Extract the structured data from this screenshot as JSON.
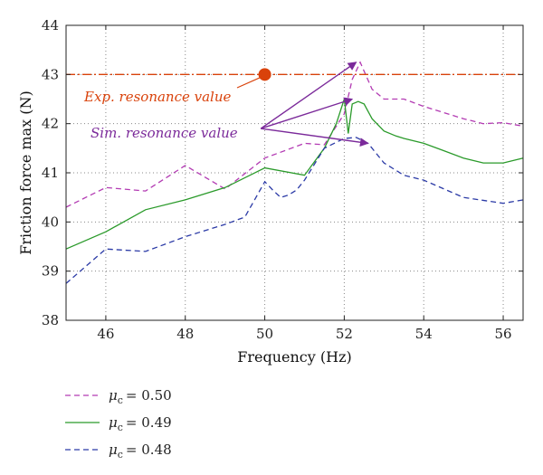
{
  "chart_data": {
    "type": "line",
    "xlabel": "Frequency (Hz)",
    "ylabel": "Friction force max (N)",
    "xlim": [
      45,
      56.5
    ],
    "ylim": [
      38,
      44
    ],
    "xticks": [
      46,
      48,
      50,
      52,
      54,
      56
    ],
    "yticks": [
      38,
      39,
      40,
      41,
      42,
      43,
      44
    ],
    "grid": "dotted",
    "legend_position": "below-left",
    "series": [
      {
        "name": "= 0.50",
        "mu_value": "0.50",
        "color": "#b33bb3",
        "dash": "dashed",
        "x": [
          45,
          46,
          47,
          48,
          49,
          50,
          51,
          51.5,
          52,
          52.2,
          52.4,
          52.7,
          53,
          53.5,
          54,
          55,
          55.5,
          56,
          56.5
        ],
        "y": [
          40.3,
          40.7,
          40.63,
          41.15,
          40.67,
          41.3,
          41.6,
          41.57,
          42.2,
          42.9,
          43.25,
          42.7,
          42.5,
          42.5,
          42.35,
          42.1,
          42.0,
          42.02,
          41.95
        ]
      },
      {
        "name": "= 0.49",
        "mu_value": "0.49",
        "color": "#2a9a2a",
        "dash": "solid",
        "x": [
          45,
          46,
          47,
          48,
          49,
          50,
          51,
          51.5,
          51.8,
          52,
          52.1,
          52.2,
          52.35,
          52.5,
          52.7,
          53,
          53.3,
          53.5,
          54,
          54.5,
          55,
          55.5,
          56,
          56.5
        ],
        "y": [
          39.45,
          39.8,
          40.25,
          40.45,
          40.7,
          41.1,
          40.95,
          41.5,
          42.0,
          42.5,
          41.8,
          42.4,
          42.45,
          42.4,
          42.1,
          41.85,
          41.75,
          41.7,
          41.6,
          41.45,
          41.3,
          41.2,
          41.2,
          41.3
        ]
      },
      {
        "name": "= 0.48",
        "mu_value": "0.48",
        "color": "#2b3aa6",
        "dash": "dashed",
        "x": [
          45,
          46,
          47,
          48,
          49,
          49.5,
          50,
          50.2,
          50.4,
          50.6,
          50.8,
          51,
          51.5,
          52,
          52.3,
          52.6,
          53,
          53.5,
          54,
          55,
          56,
          56.5
        ],
        "y": [
          38.75,
          39.45,
          39.4,
          39.7,
          39.95,
          40.1,
          40.82,
          40.65,
          40.5,
          40.55,
          40.65,
          40.85,
          41.5,
          41.7,
          41.72,
          41.6,
          41.2,
          40.95,
          40.85,
          40.5,
          40.38,
          40.45
        ]
      }
    ],
    "exp_resonance": {
      "label": "Exp. resonance value",
      "value": 43.0,
      "marker_x": 50,
      "color": "#d9420b"
    },
    "sim_resonance": {
      "label": "Sim. resonance value",
      "color": "#7b2a9a",
      "arrow_start": [
        49.9,
        41.9
      ],
      "arrow_targets": [
        [
          52.3,
          43.25
        ],
        [
          52.2,
          42.5
        ],
        [
          52.6,
          41.6
        ]
      ]
    }
  },
  "legend": {
    "mu_symbol": "μ",
    "mu_subscript": "c"
  }
}
